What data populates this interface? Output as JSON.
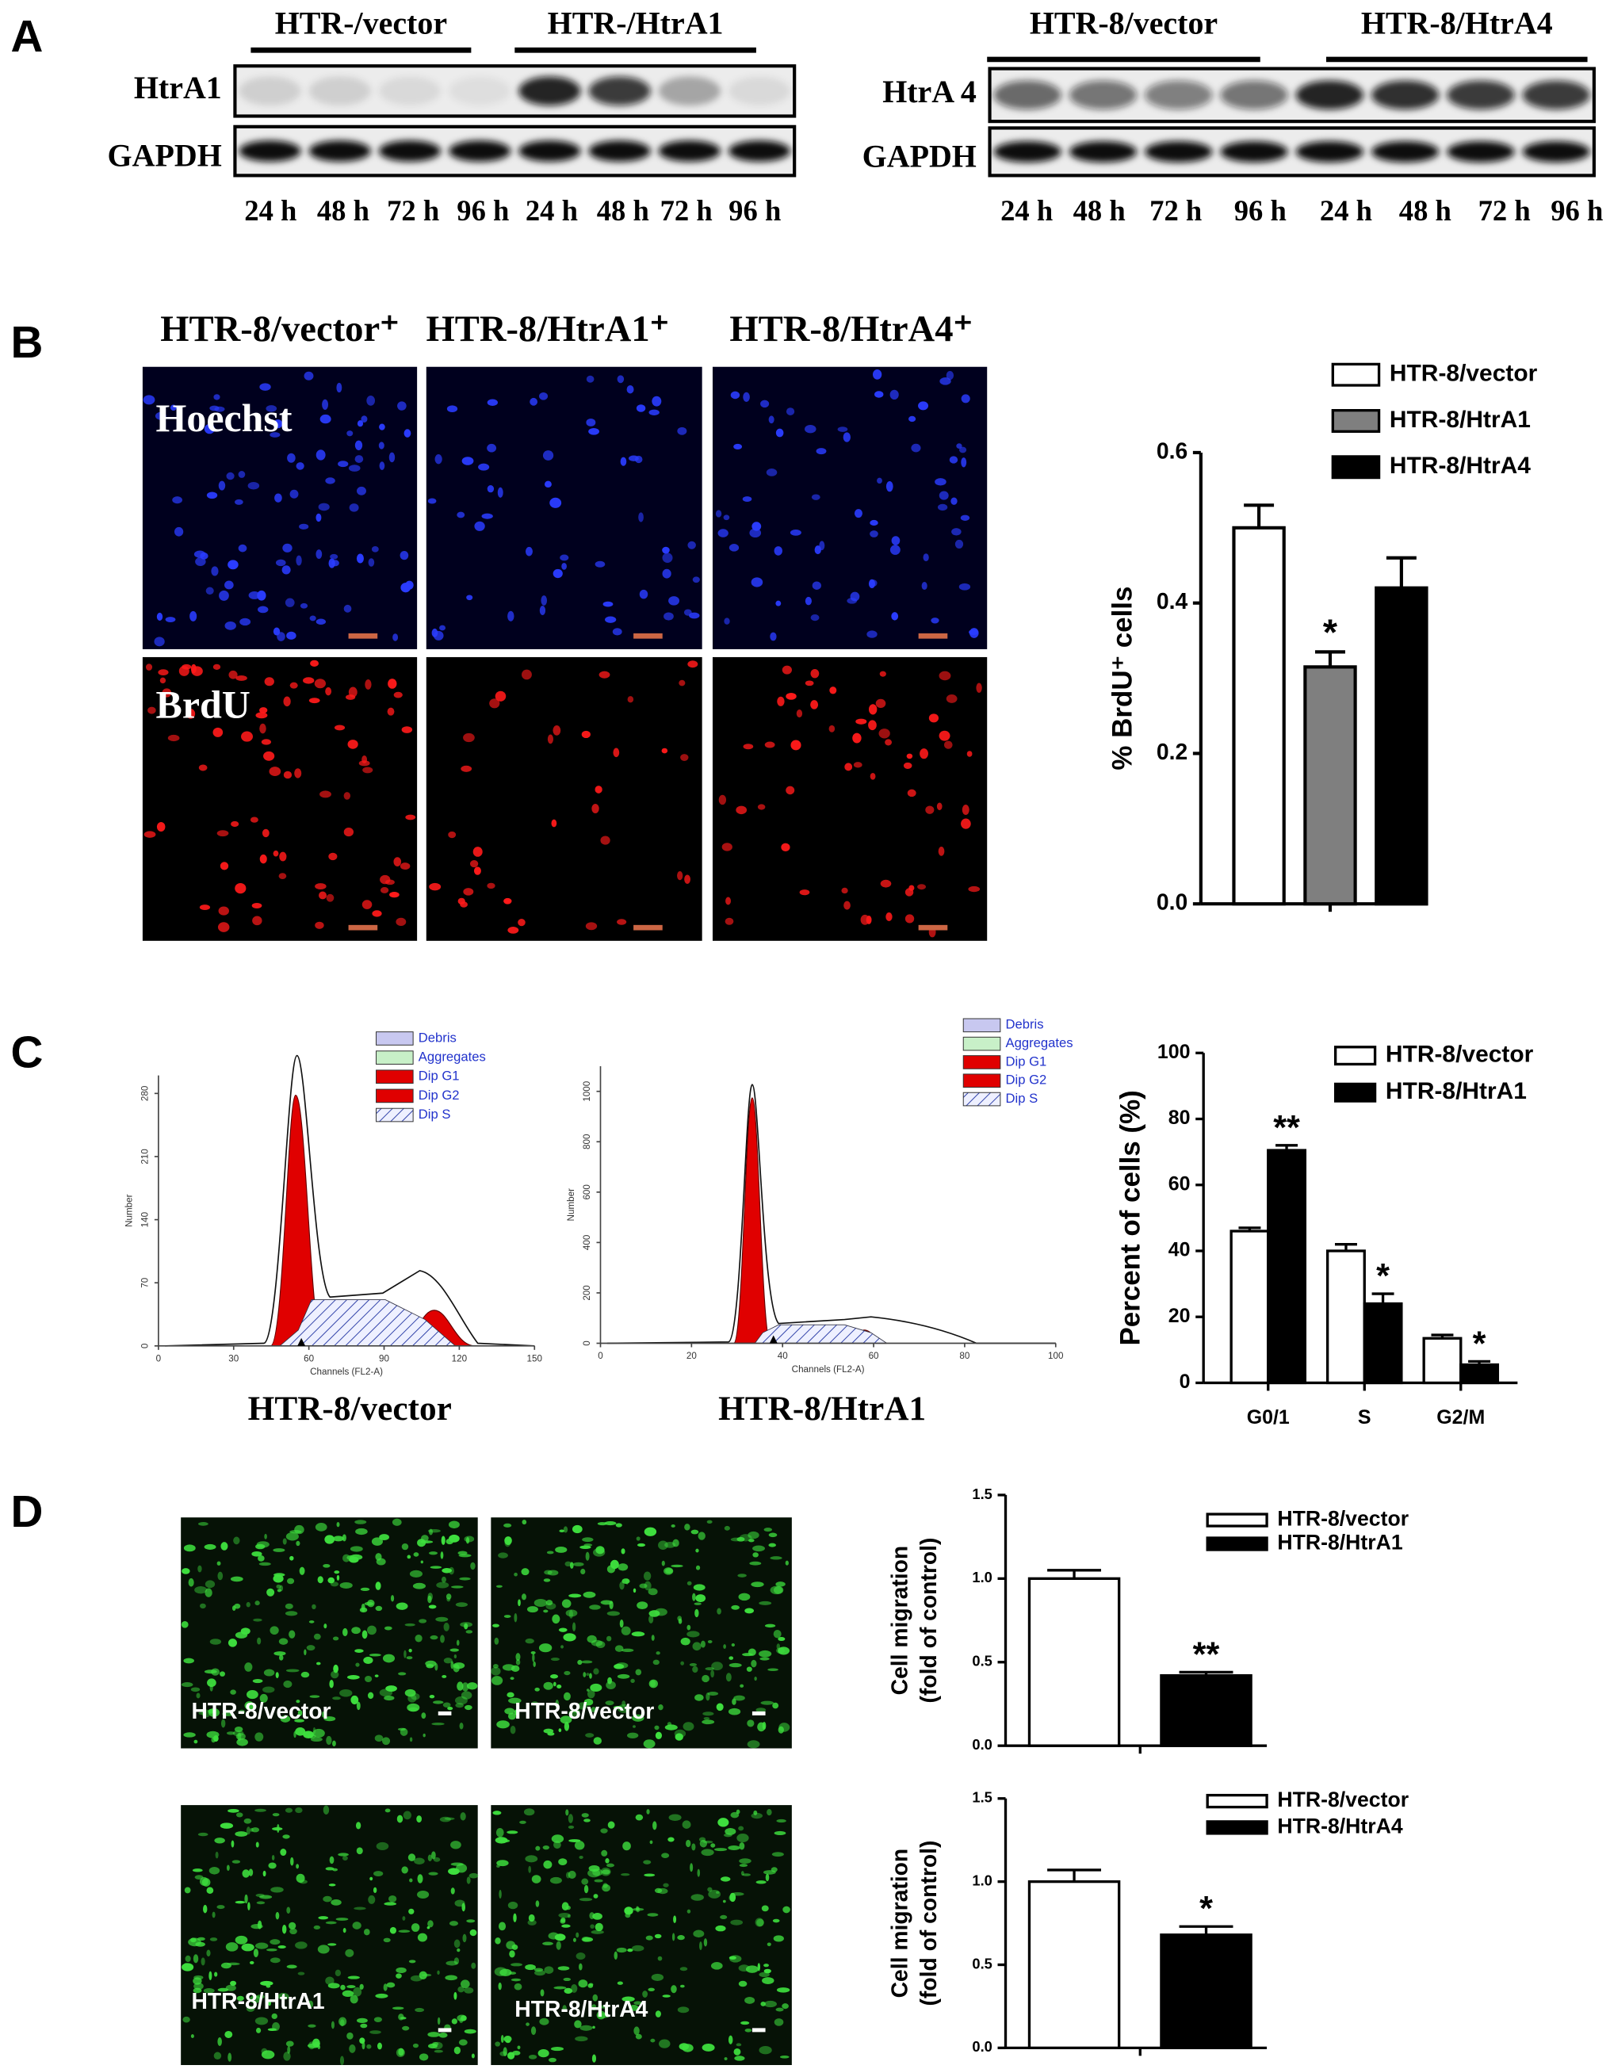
{
  "panel_labels": [
    "A",
    "B",
    "C",
    "D"
  ],
  "blots": [
    {
      "groups": [
        "HTR-/vector",
        "HTR-/HtrA1"
      ],
      "rows": [
        "HtrA1",
        "GAPDH"
      ],
      "times": [
        "24 h",
        "48 h",
        "72 h",
        "96 h",
        "24 h",
        "48 h",
        "72 h",
        "96 h"
      ]
    },
    {
      "groups": [
        "HTR-8/vector",
        "HTR-8/HtrA4"
      ],
      "rows": [
        "HtrA 4",
        "GAPDH"
      ],
      "times": [
        "24 h",
        "48 h",
        "72 h",
        "96 h",
        "24 h",
        "48 h",
        "72 h",
        "96 h"
      ]
    }
  ],
  "images": {
    "column_titles": [
      "HTR-8/vector⁺",
      "HTR-8/HtrA1⁺",
      "HTR-8/HtrA4⁺"
    ],
    "row_labels": [
      "Hoechst",
      "BrdU"
    ]
  },
  "histograms": [
    {
      "title": "HTR-8/vector",
      "legend": [
        "Debris",
        "Aggregates",
        "Dip G1",
        "Dip G2",
        "Dip S"
      ],
      "x_label": "Channels (FL2-A)",
      "y_label": "Number",
      "xlim": [
        0,
        150
      ],
      "xticks": [
        0,
        30,
        60,
        90,
        120,
        150
      ],
      "ylim": [
        0,
        300
      ],
      "yticks": [
        0,
        70,
        140,
        210,
        280
      ]
    },
    {
      "title": "HTR-8/HtrA1",
      "legend": [
        "Debris",
        "Aggregates",
        "Dip G1",
        "Dip G2",
        "Dip S"
      ],
      "x_label": "Channels (FL2-A)",
      "y_label": "Number",
      "xlim": [
        0,
        100
      ],
      "xticks": [
        0,
        20,
        40,
        60,
        80,
        100
      ],
      "ylim": [
        0,
        1100
      ],
      "yticks": [
        0,
        200,
        400,
        600,
        800,
        1000
      ]
    }
  ],
  "migration_images": [
    "HTR-8/vector",
    "HTR-8/vector",
    "HTR-8/HtrA1",
    "HTR-8/HtrA4"
  ],
  "chart_data": [
    {
      "type": "bar",
      "y_label": "% BrdU⁺ cells",
      "categories": [
        null
      ],
      "series": [
        {
          "name": "HTR-8/vector",
          "color": "#ffffff",
          "values": [
            0.5
          ],
          "errors": [
            0.03
          ],
          "annotations": [
            null
          ]
        },
        {
          "name": "HTR-8/HtrA1",
          "color": "#7f7f7f",
          "values": [
            0.315
          ],
          "errors": [
            0.02
          ],
          "annotations": [
            "*"
          ]
        },
        {
          "name": "HTR-8/HtrA4",
          "color": "#000000",
          "values": [
            0.42
          ],
          "errors": [
            0.04
          ],
          "annotations": [
            null
          ]
        }
      ],
      "ylim": [
        0,
        0.6
      ],
      "yticks": [
        {
          "value": 0,
          "label": "0.0"
        },
        0.2,
        0.4,
        0.6
      ]
    },
    {
      "type": "bar",
      "y_label": "Percent of cells (%)",
      "categories": [
        "G0/1",
        "S",
        "G2/M"
      ],
      "series": [
        {
          "name": "HTR-8/vector",
          "color": "#ffffff",
          "values": [
            46,
            40,
            13.5
          ],
          "errors": [
            1,
            2,
            1
          ],
          "annotations": [
            null,
            null,
            null
          ]
        },
        {
          "name": "HTR-8/HtrA1",
          "color": "#000000",
          "values": [
            70.5,
            24,
            5.5
          ],
          "errors": [
            1.5,
            3,
            1
          ],
          "annotations": [
            "**",
            "*",
            "*"
          ]
        }
      ],
      "ylim": [
        0,
        100
      ],
      "yticks": [
        0,
        20,
        40,
        60,
        80,
        100
      ]
    },
    {
      "type": "bar",
      "y_label": [
        "Cell migration",
        "(fold of control)"
      ],
      "categories": [
        null
      ],
      "series": [
        {
          "name": "HTR-8/vector",
          "color": "#ffffff",
          "values": [
            1.0
          ],
          "errors": [
            0.05
          ],
          "annotations": [
            null
          ]
        },
        {
          "name": "HTR-8/HtrA1",
          "color": "#000000",
          "values": [
            0.42
          ],
          "errors": [
            0.02
          ],
          "annotations": [
            "**"
          ]
        }
      ],
      "ylim": [
        0,
        1.5
      ],
      "yticks": [
        {
          "value": 0,
          "label": "0.0"
        },
        0.5,
        {
          "value": 1,
          "label": "1.0"
        },
        1.5
      ]
    },
    {
      "type": "bar",
      "y_label": [
        "Cell migration",
        "(fold of control)"
      ],
      "categories": [
        null
      ],
      "series": [
        {
          "name": "HTR-8/vector",
          "color": "#ffffff",
          "values": [
            1.0
          ],
          "errors": [
            0.07
          ],
          "annotations": [
            null
          ]
        },
        {
          "name": "HTR-8/HtrA4",
          "color": "#000000",
          "values": [
            0.68
          ],
          "errors": [
            0.05
          ],
          "annotations": [
            "*"
          ]
        }
      ],
      "ylim": [
        0,
        1.5
      ],
      "yticks": [
        {
          "value": 0,
          "label": "0.0"
        },
        0.5,
        {
          "value": 1,
          "label": "1.0"
        },
        1.5
      ]
    }
  ]
}
